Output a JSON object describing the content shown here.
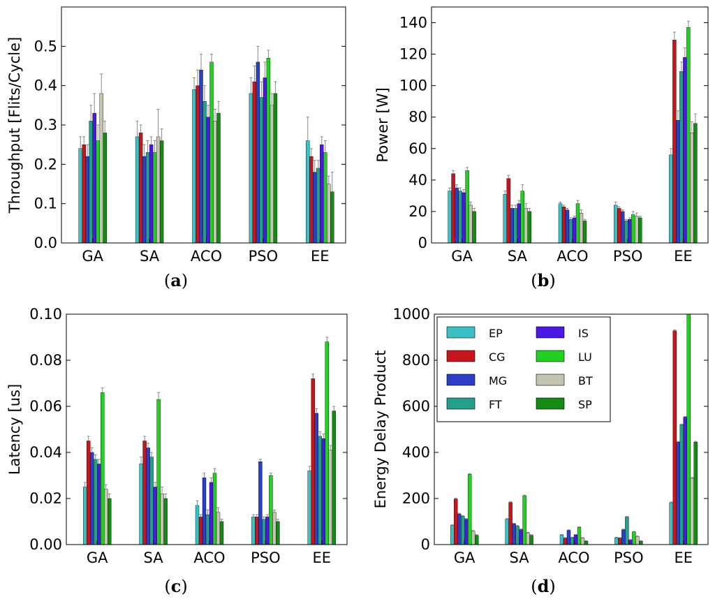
{
  "colors": {
    "EP": "#3cc0c4",
    "CG": "#c4161c",
    "MG": "#2b3fc4",
    "FT": "#24a08a",
    "IS": "#4a18e0",
    "LU": "#22d022",
    "BT": "#c4c4b0",
    "SP": "#158a15",
    "error_bar": "#888888"
  },
  "chart_data": [
    {
      "id": "a",
      "type": "bar",
      "caption_letter": "a",
      "ylabel": "Throughput [Flits/Cycle]",
      "ylim": [
        0,
        0.6
      ],
      "yticks": [
        0.0,
        0.1,
        0.2,
        0.3,
        0.4,
        0.5
      ],
      "ytick_labels": [
        "0.0",
        "0.1",
        "0.2",
        "0.3",
        "0.4",
        "0.5"
      ],
      "categories": [
        "GA",
        "SA",
        "ACO",
        "PSO",
        "EE"
      ],
      "series": [
        {
          "name": "EP",
          "values": [
            0.24,
            0.27,
            0.39,
            0.38,
            0.26
          ],
          "errors": [
            0.03,
            0.04,
            0.03,
            0.04,
            0.06
          ]
        },
        {
          "name": "CG",
          "values": [
            0.25,
            0.28,
            0.4,
            0.41,
            0.22
          ],
          "errors": [
            0.02,
            0.02,
            0.04,
            0.04,
            0.02
          ]
        },
        {
          "name": "MG",
          "values": [
            0.22,
            0.22,
            0.44,
            0.46,
            0.18
          ],
          "errors": [
            0.03,
            0.03,
            0.04,
            0.04,
            0.03
          ]
        },
        {
          "name": "FT",
          "values": [
            0.31,
            0.23,
            0.36,
            0.37,
            0.19
          ],
          "errors": [
            0.04,
            0.03,
            0.04,
            0.04,
            0.02
          ]
        },
        {
          "name": "IS",
          "values": [
            0.33,
            0.25,
            0.32,
            0.42,
            0.25
          ],
          "errors": [
            0.05,
            0.02,
            0.03,
            0.04,
            0.02
          ]
        },
        {
          "name": "LU",
          "values": [
            0.26,
            0.23,
            0.46,
            0.47,
            0.23
          ],
          "errors": [
            0.04,
            0.03,
            0.02,
            0.02,
            0.03
          ]
        },
        {
          "name": "BT",
          "values": [
            0.38,
            0.27,
            0.31,
            0.35,
            0.15
          ],
          "errors": [
            0.05,
            0.07,
            0.03,
            0.03,
            0.02
          ]
        },
        {
          "name": "SP",
          "values": [
            0.28,
            0.26,
            0.33,
            0.38,
            0.13
          ],
          "errors": [
            0.03,
            0.03,
            0.03,
            0.03,
            0.05
          ]
        }
      ]
    },
    {
      "id": "b",
      "type": "bar",
      "caption_letter": "b",
      "ylabel": "Power [W]",
      "ylim": [
        0,
        150
      ],
      "yticks": [
        0,
        20,
        40,
        60,
        80,
        100,
        120,
        140
      ],
      "ytick_labels": [
        "0",
        "20",
        "40",
        "60",
        "80",
        "100",
        "120",
        "140"
      ],
      "categories": [
        "GA",
        "SA",
        "ACO",
        "PSO",
        "EE"
      ],
      "series": [
        {
          "name": "EP",
          "values": [
            33,
            31,
            25,
            24,
            56
          ],
          "errors": [
            2,
            2,
            1,
            2,
            4
          ]
        },
        {
          "name": "CG",
          "values": [
            44,
            41,
            23,
            22,
            129
          ],
          "errors": [
            2,
            2,
            1,
            1,
            5
          ]
        },
        {
          "name": "MG",
          "values": [
            35,
            22,
            21,
            20,
            78
          ],
          "errors": [
            2,
            2,
            1,
            1,
            6
          ]
        },
        {
          "name": "FT",
          "values": [
            33,
            22,
            15,
            14,
            109
          ],
          "errors": [
            2,
            2,
            1,
            1,
            6
          ]
        },
        {
          "name": "IS",
          "values": [
            32,
            25,
            16,
            15,
            118
          ],
          "errors": [
            2,
            2,
            1,
            1,
            6
          ]
        },
        {
          "name": "LU",
          "values": [
            46,
            33,
            25,
            18,
            137
          ],
          "errors": [
            2,
            4,
            2,
            2,
            4
          ]
        },
        {
          "name": "BT",
          "values": [
            24,
            22,
            19,
            17,
            70
          ],
          "errors": [
            2,
            3,
            2,
            2,
            7
          ]
        },
        {
          "name": "SP",
          "values": [
            20,
            20,
            14,
            16,
            76
          ],
          "errors": [
            2,
            2,
            1,
            1,
            6
          ]
        }
      ]
    },
    {
      "id": "c",
      "type": "bar",
      "caption_letter": "c",
      "ylabel": "Latency [us]",
      "ylim": [
        0,
        0.1
      ],
      "yticks": [
        0.0,
        0.02,
        0.04,
        0.06,
        0.08,
        0.1
      ],
      "ytick_labels": [
        "0.00",
        "0.02",
        "0.04",
        "0.06",
        "0.08",
        "0.10"
      ],
      "categories": [
        "GA",
        "SA",
        "ACO",
        "PSO",
        "EE"
      ],
      "series": [
        {
          "name": "EP",
          "values": [
            0.025,
            0.035,
            0.017,
            0.012,
            0.032
          ],
          "errors": [
            0.002,
            0.003,
            0.002,
            0.001,
            0.002
          ]
        },
        {
          "name": "CG",
          "values": [
            0.045,
            0.045,
            0.012,
            0.012,
            0.072
          ],
          "errors": [
            0.002,
            0.002,
            0.001,
            0.001,
            0.002
          ]
        },
        {
          "name": "MG",
          "values": [
            0.04,
            0.042,
            0.029,
            0.036,
            0.057
          ],
          "errors": [
            0.002,
            0.002,
            0.002,
            0.001,
            0.002
          ]
        },
        {
          "name": "FT",
          "values": [
            0.037,
            0.038,
            0.013,
            0.011,
            0.047
          ],
          "errors": [
            0.002,
            0.002,
            0.002,
            0.001,
            0.002
          ]
        },
        {
          "name": "IS",
          "values": [
            0.035,
            0.025,
            0.027,
            0.012,
            0.046
          ],
          "errors": [
            0.002,
            0.002,
            0.002,
            0.001,
            0.002
          ]
        },
        {
          "name": "LU",
          "values": [
            0.066,
            0.063,
            0.031,
            0.03,
            0.088
          ],
          "errors": [
            0.002,
            0.003,
            0.002,
            0.001,
            0.002
          ]
        },
        {
          "name": "BT",
          "values": [
            0.024,
            0.022,
            0.014,
            0.014,
            0.041
          ],
          "errors": [
            0.002,
            0.003,
            0.002,
            0.001,
            0.002
          ]
        },
        {
          "name": "SP",
          "values": [
            0.02,
            0.02,
            0.01,
            0.01,
            0.058
          ],
          "errors": [
            0.002,
            0.002,
            0.001,
            0.001,
            0.002
          ]
        }
      ]
    },
    {
      "id": "d",
      "type": "bar",
      "caption_letter": "d",
      "ylabel": "Energy Delay Product",
      "ylim": [
        0,
        1000
      ],
      "yticks": [
        0,
        200,
        400,
        600,
        800,
        1000
      ],
      "ytick_labels": [
        "0",
        "200",
        "400",
        "600",
        "800",
        "1000"
      ],
      "categories": [
        "GA",
        "SA",
        "ACO",
        "PSO",
        "EE"
      ],
      "legend": {
        "placement": "top-left",
        "entries": [
          "EP",
          "CG",
          "MG",
          "FT",
          "IS",
          "LU",
          "BT",
          "SP"
        ]
      },
      "series": [
        {
          "name": "EP",
          "values": [
            83,
            110,
            42,
            30,
            182
          ],
          "errors": [
            3,
            3,
            2,
            2,
            3
          ]
        },
        {
          "name": "CG",
          "values": [
            198,
            183,
            28,
            28,
            928
          ],
          "errors": [
            3,
            3,
            2,
            2,
            4
          ]
        },
        {
          "name": "MG",
          "values": [
            133,
            90,
            62,
            65,
            445
          ],
          "errors": [
            3,
            3,
            2,
            2,
            3
          ]
        },
        {
          "name": "FT",
          "values": [
            123,
            80,
            30,
            120,
            520
          ],
          "errors": [
            3,
            3,
            2,
            2,
            3
          ]
        },
        {
          "name": "IS",
          "values": [
            110,
            65,
            42,
            20,
            553
          ],
          "errors": [
            3,
            3,
            2,
            2,
            3
          ]
        },
        {
          "name": "LU",
          "values": [
            305,
            212,
            75,
            55,
            1000
          ],
          "errors": [
            3,
            3,
            2,
            2,
            3
          ]
        },
        {
          "name": "BT",
          "values": [
            58,
            50,
            28,
            35,
            288
          ],
          "errors": [
            3,
            3,
            2,
            2,
            3
          ]
        },
        {
          "name": "SP",
          "values": [
            40,
            40,
            15,
            15,
            445
          ],
          "errors": [
            3,
            3,
            2,
            2,
            3
          ]
        }
      ]
    }
  ]
}
